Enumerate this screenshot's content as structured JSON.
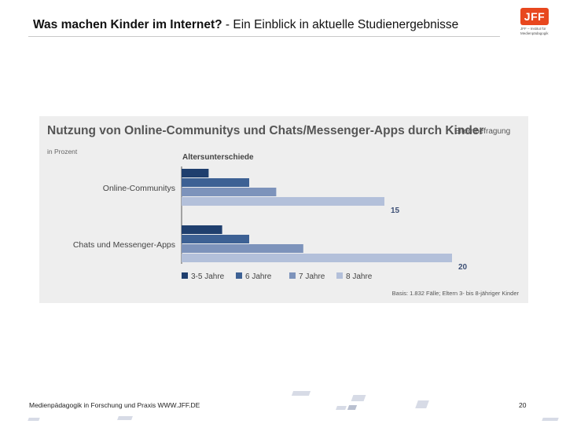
{
  "slide": {
    "title_bold": "Was machen Kinder im Internet?",
    "title_rest": " - Ein Einblick in aktuelle Studienergebnisse"
  },
  "logo": {
    "text": "JFF",
    "subtitle": "JFF – Institut für Medienpädagogik"
  },
  "footer": {
    "text": "Medienpädagogik in Forschung und Praxis WWW.JFF.DE",
    "page_number": "20"
  },
  "colors": {
    "panel_background": "#eeeeee",
    "series": [
      "#1f3f6e",
      "#3d6194",
      "#7d93bb",
      "#b3c0da"
    ],
    "logo": "#e8471e"
  },
  "chart_data": {
    "type": "bar",
    "orientation": "horizontal",
    "title": "Nutzung von Online-Communitys und Chats/Messenger-Apps durch Kinder",
    "badge": "Elternbefragung",
    "unit_label": "in Prozent",
    "subtitle": "Altersunterschiede",
    "source": "Basis: 1.832 Fälle; Eltern 3- bis 8-jähriger Kinder",
    "categories": [
      "Online-Communitys",
      "Chats und Messenger-Apps"
    ],
    "series": [
      {
        "name": "3-5 Jahre",
        "values": [
          2,
          3
        ]
      },
      {
        "name": "6 Jahre",
        "values": [
          5,
          5
        ]
      },
      {
        "name": "7 Jahre",
        "values": [
          7,
          9
        ]
      },
      {
        "name": "8 Jahre",
        "values": [
          15,
          20
        ]
      }
    ],
    "xlim": [
      0,
      20
    ],
    "grid": false,
    "legend_position": "bottom"
  }
}
